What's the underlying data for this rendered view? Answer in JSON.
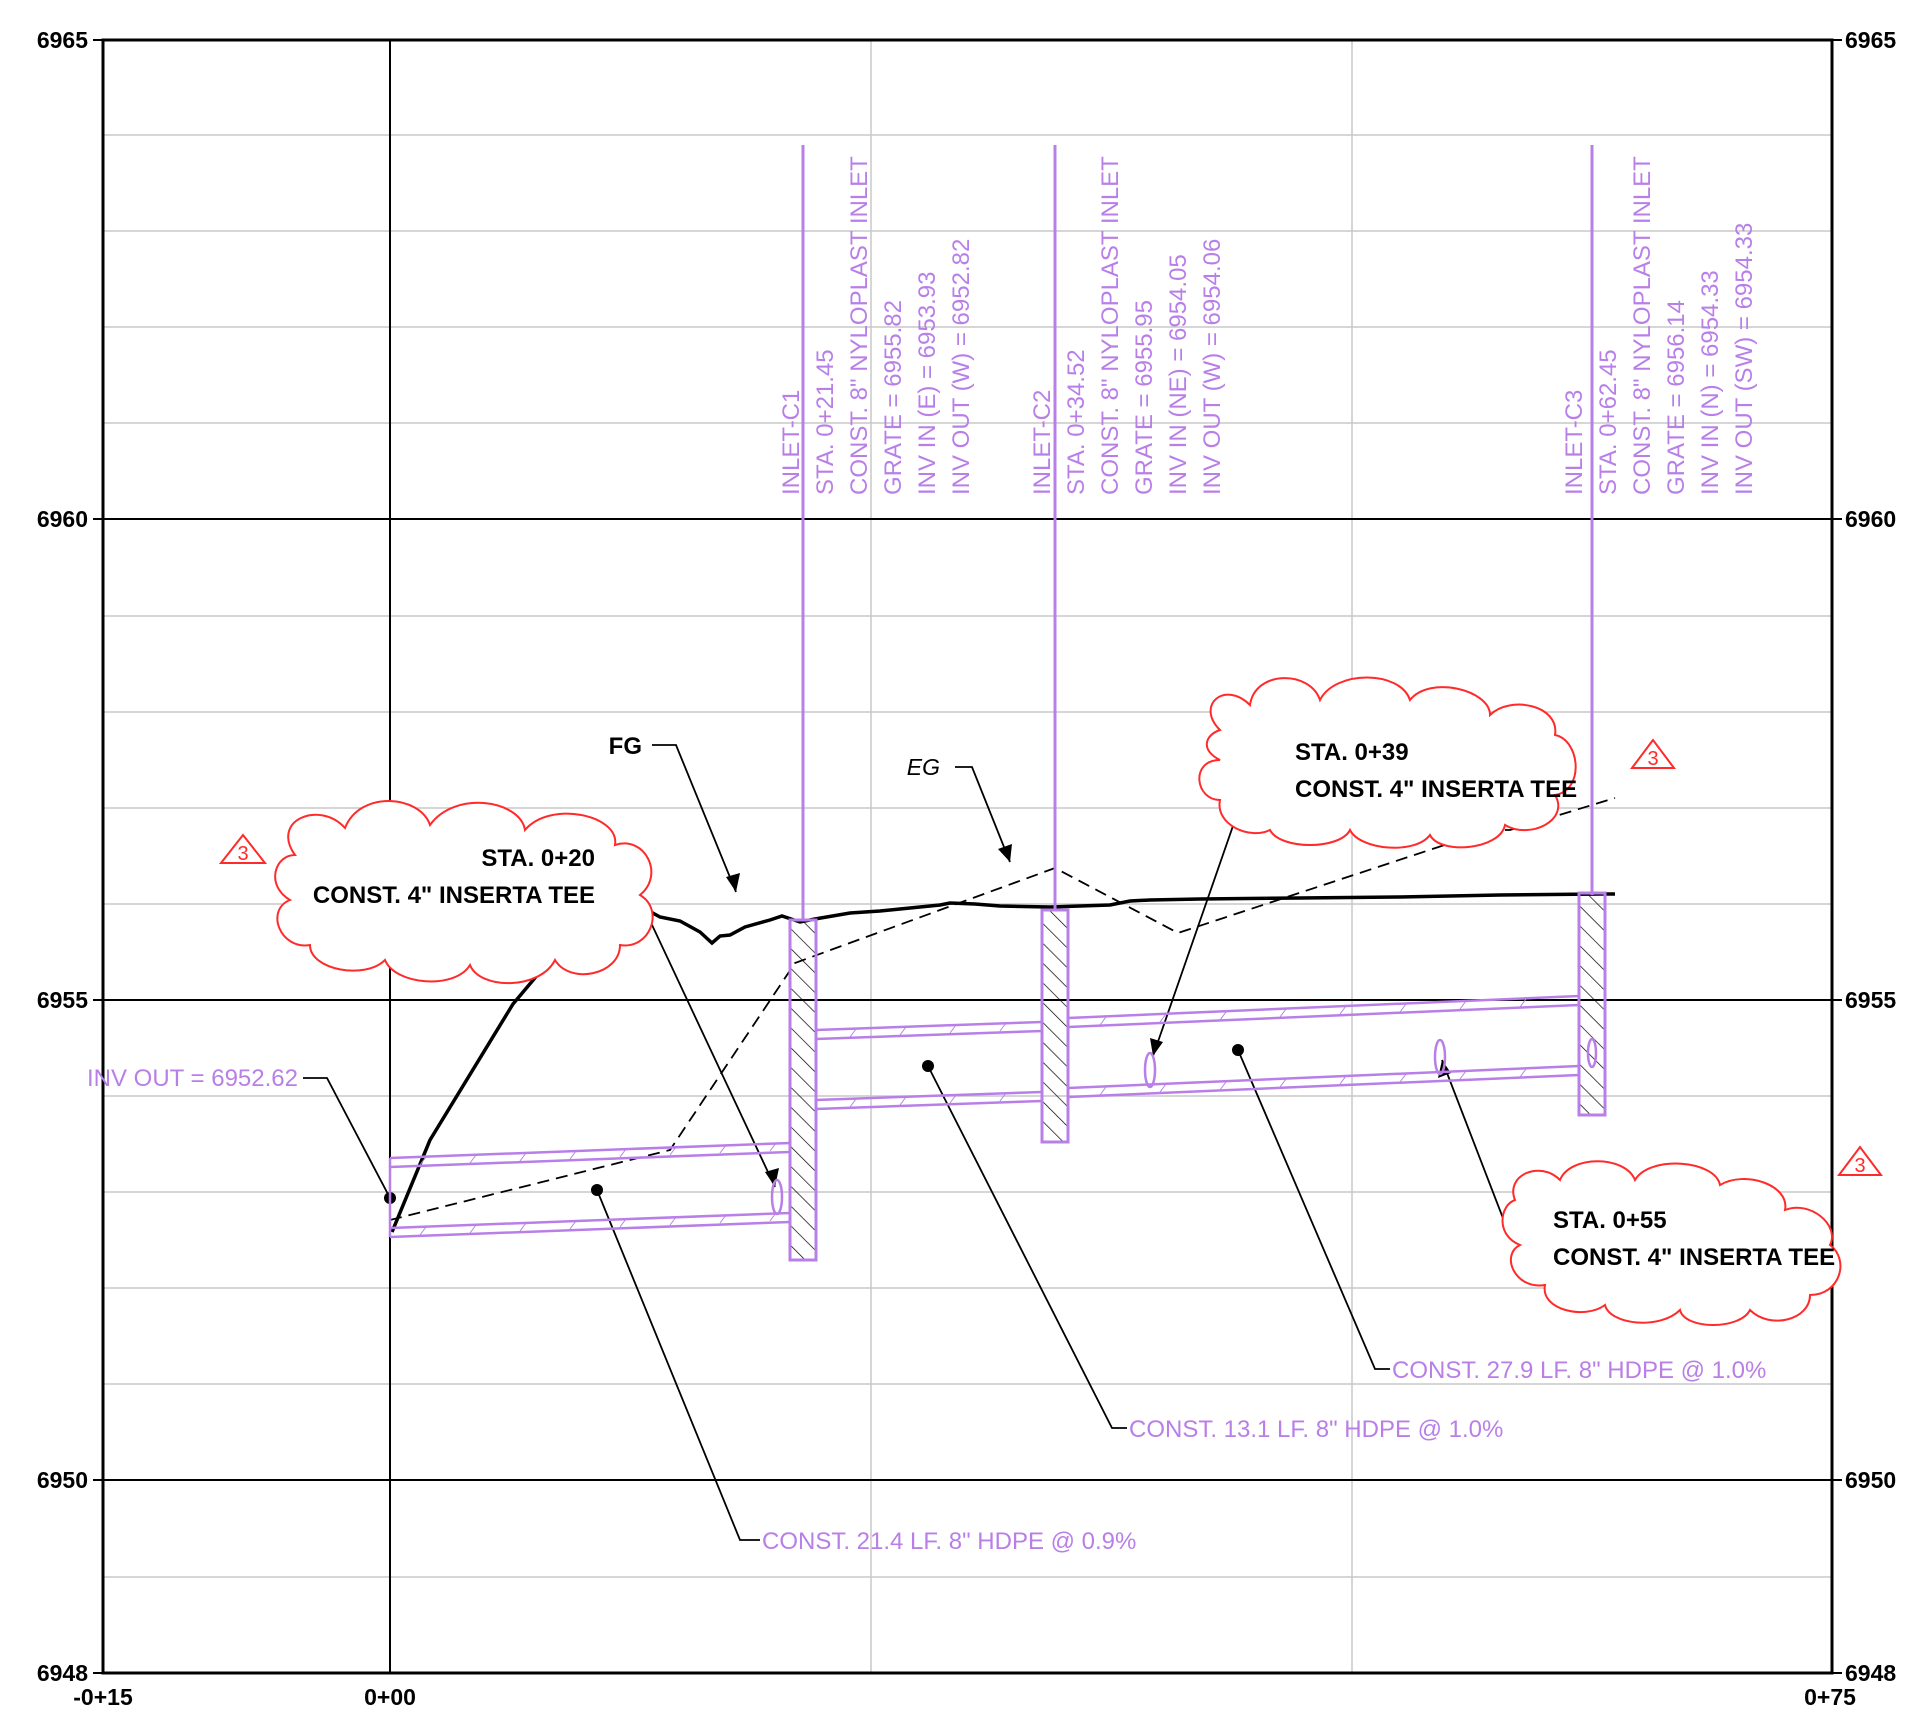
{
  "drawing": {
    "type": "storm drain profile",
    "colors": {
      "grid_major": "#000000",
      "grid_minor": "#c8c8c8",
      "pipe": "#b97fe8",
      "finished_grade": "#000000",
      "existing_grade": "#000000",
      "revision_cloud": "#ff2a2a"
    }
  },
  "axes": {
    "elevation_labels_left": [
      "6965",
      "6960",
      "6955",
      "6950",
      "6948"
    ],
    "elevation_labels_right": [
      "6965",
      "6960",
      "6955",
      "6950",
      "6948"
    ],
    "station_labels": [
      "-0+15",
      "0+00",
      "0+75"
    ],
    "elevation_range": [
      6948,
      6965
    ],
    "station_range": [
      -15,
      75
    ]
  },
  "grade_labels": {
    "finished": "FG",
    "existing": "EG"
  },
  "inlets": [
    {
      "id": "C1",
      "lines": [
        "INLET-C1",
        "STA. 0+21.45",
        "CONST. 8\" NYLOPLAST INLET",
        "GRATE = 6955.82",
        "INV IN (E) = 6953.93",
        "INV OUT (W) = 6952.82"
      ]
    },
    {
      "id": "C2",
      "lines": [
        "INLET-C2",
        "STA. 0+34.52",
        "CONST. 8\" NYLOPLAST INLET",
        "GRATE = 6955.95",
        "INV IN (NE) = 6954.05",
        "INV OUT (W) = 6954.06"
      ]
    },
    {
      "id": "C3",
      "lines": [
        "INLET-C3",
        "STA. 0+62.45",
        "CONST. 8\" NYLOPLAST INLET",
        "GRATE = 6956.14",
        "INV IN (N) = 6954.33",
        "INV OUT (SW) = 6954.33"
      ]
    }
  ],
  "tees": [
    {
      "station": "STA. 0+20",
      "desc": "CONST. 4\" INSERTA TEE"
    },
    {
      "station": "STA. 0+39",
      "desc": "CONST. 4\" INSERTA TEE"
    },
    {
      "station": "STA. 0+55",
      "desc": "CONST. 4\" INSERTA TEE"
    }
  ],
  "pipes": [
    "CONST. 21.4 LF. 8\" HDPE @ 0.9%",
    "CONST. 13.1 LF. 8\" HDPE @ 1.0%",
    "CONST. 27.9 LF. 8\" HDPE @ 1.0%"
  ],
  "outlet_label": "INV OUT = 6952.62",
  "revision_marker": "3"
}
